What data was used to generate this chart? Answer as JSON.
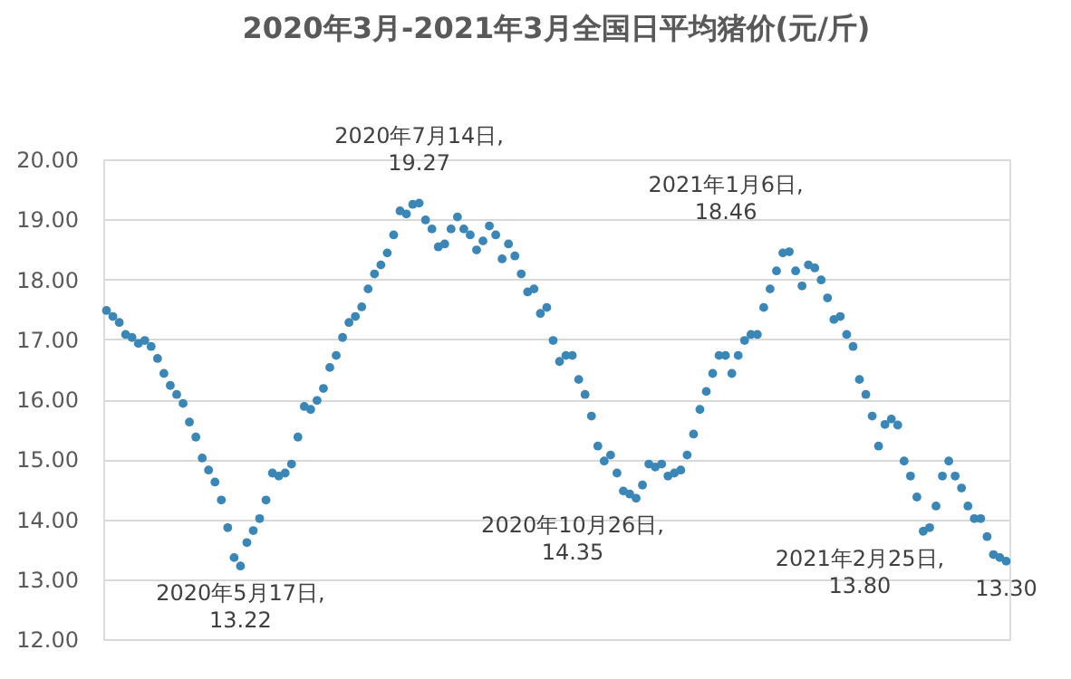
{
  "chart_data": {
    "type": "scatter",
    "title": "2020年3月-2021年3月全国日平均猪价(元/斤)",
    "categories": [
      null,
      null,
      null,
      null,
      null,
      null,
      null,
      null,
      null,
      null,
      null,
      null,
      null,
      null,
      null,
      null,
      null,
      null,
      null,
      null,
      null,
      null,
      null,
      null,
      null,
      null,
      null,
      null,
      null,
      null,
      null,
      null,
      null,
      null,
      null,
      null,
      null,
      null,
      null,
      null,
      null,
      null,
      null,
      null,
      null,
      null,
      null,
      null,
      null,
      null,
      null,
      null,
      null,
      null,
      null,
      null,
      null,
      null,
      null,
      null,
      null,
      null,
      null,
      null,
      null,
      null,
      null,
      null,
      null,
      null,
      null,
      null,
      null,
      null,
      null,
      null,
      null,
      null,
      null,
      null,
      null,
      null,
      null,
      null,
      null,
      null,
      null,
      null,
      null,
      null,
      null,
      null,
      null,
      null,
      null,
      null,
      null,
      null,
      null,
      null,
      null,
      null,
      null,
      null,
      null,
      null,
      null,
      null,
      null,
      null,
      null,
      null,
      null,
      null,
      null,
      null,
      null,
      null,
      null,
      null,
      null,
      null,
      null,
      null,
      null,
      null,
      null,
      null,
      null,
      null,
      null,
      null,
      null,
      null,
      null,
      null,
      null,
      null,
      null,
      null,
      null,
      null
    ],
    "series": [
      {
        "color": "#3a87b7",
        "values": [
          17.48,
          17.38,
          17.28,
          17.08,
          17.03,
          16.93,
          16.98,
          16.88,
          16.68,
          16.43,
          16.23,
          16.08,
          15.93,
          15.62,
          15.37,
          15.02,
          14.82,
          14.62,
          14.32,
          13.86,
          13.36,
          13.22,
          13.61,
          13.81,
          14.01,
          14.32,
          14.77,
          14.72,
          14.77,
          14.92,
          15.37,
          15.88,
          15.83,
          15.98,
          16.18,
          16.53,
          16.73,
          17.03,
          17.28,
          17.38,
          17.54,
          17.84,
          18.09,
          18.24,
          18.44,
          18.74,
          19.14,
          19.09,
          19.25,
          19.27,
          18.99,
          18.84,
          18.54,
          18.59,
          18.84,
          19.04,
          18.84,
          18.74,
          18.49,
          18.64,
          18.89,
          18.74,
          18.34,
          18.59,
          18.39,
          18.09,
          17.79,
          17.84,
          17.43,
          17.53,
          16.98,
          16.63,
          16.73,
          16.73,
          16.33,
          16.08,
          15.72,
          15.22,
          14.97,
          15.07,
          14.77,
          14.47,
          14.42,
          14.35,
          14.57,
          14.92,
          14.87,
          14.92,
          14.72,
          14.77,
          14.82,
          15.07,
          15.42,
          15.83,
          16.13,
          16.43,
          16.73,
          16.73,
          16.43,
          16.73,
          16.98,
          17.08,
          17.08,
          17.53,
          17.84,
          18.14,
          18.44,
          18.46,
          18.14,
          17.89,
          18.24,
          18.19,
          17.99,
          17.69,
          17.33,
          17.38,
          17.08,
          16.88,
          16.33,
          16.08,
          15.72,
          15.22,
          15.58,
          15.67,
          15.57,
          14.97,
          14.72,
          14.37,
          13.8,
          13.86,
          14.22,
          14.72,
          14.97,
          14.72,
          14.52,
          14.22,
          14.01,
          14.01,
          13.71,
          13.41,
          13.36,
          13.3
        ]
      }
    ],
    "ylim": [
      12,
      20
    ],
    "yticks": [
      {
        "value": 12,
        "label": "12.00"
      },
      {
        "value": 13,
        "label": "13.00"
      },
      {
        "value": 14,
        "label": "14.00"
      },
      {
        "value": 15,
        "label": "15.00"
      },
      {
        "value": 16,
        "label": "16.00"
      },
      {
        "value": 17,
        "label": "17.00"
      },
      {
        "value": 18,
        "label": "18.00"
      },
      {
        "value": 19,
        "label": "19.00"
      },
      {
        "value": 20,
        "label": "20.00"
      }
    ],
    "tick_labels": "y",
    "grid": "y",
    "marker": "circle",
    "legend": false,
    "annotations": [
      "2020年5月17日,\n13.22",
      "2020年7月14日,\n19.27",
      "2020年10月26日,\n14.35",
      "2021年1月6日,\n18.46",
      "2021年2月25日,\n13.80",
      "13.30"
    ]
  }
}
